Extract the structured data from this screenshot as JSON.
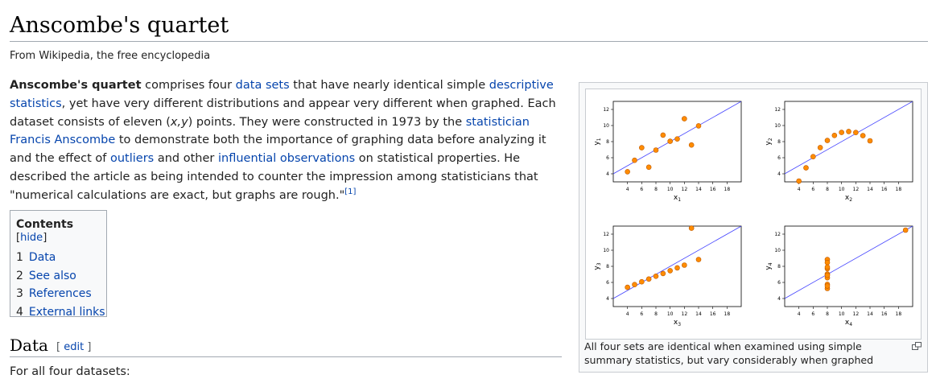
{
  "title": "Anscombe's quartet",
  "tagline": "From Wikipedia, the free encyclopedia",
  "intro": {
    "p1": "Anscombe's quartet",
    "p2": " comprises four ",
    "l1": "data sets",
    "p3": " that have nearly identical simple ",
    "l2": "descriptive statistics",
    "p4": ", yet have very different distributions and appear very different when graphed. Each dataset consists of eleven (",
    "xy": "x,y",
    "p5": ") points. They were constructed in 1973 by the ",
    "l3": "statistician Francis Anscombe",
    "p6": " to demonstrate both the importance of graphing data before analyzing it and the effect of ",
    "l4": "outliers",
    "p7": " and other ",
    "l5": "influential observations",
    "p8": " on statistical properties. He described the article as being intended to counter the impression among statisticians that \"numerical calculations are exact, but graphs are rough.\"",
    "ref": "[1]"
  },
  "toc": {
    "title": "Contents",
    "hide": "hide",
    "items": [
      {
        "num": "1",
        "label": "Data"
      },
      {
        "num": "2",
        "label": "See also"
      },
      {
        "num": "3",
        "label": "References"
      },
      {
        "num": "4",
        "label": "External links"
      }
    ]
  },
  "section": {
    "heading": "Data",
    "edit": "edit",
    "text": "For all four datasets:"
  },
  "figure": {
    "caption": "All four sets are identical when examined using simple summary statistics, but vary considerably when graphed",
    "point_color": "#ff8c00",
    "line_color": "#4444ff"
  },
  "chart_data": [
    {
      "type": "scatter",
      "xlabel": "x",
      "xsub": "1",
      "ylabel": "y",
      "ysub": "1",
      "xlim": [
        2,
        20
      ],
      "ylim": [
        3,
        13
      ],
      "xticks": [
        4,
        6,
        8,
        10,
        12,
        14,
        16,
        18
      ],
      "yticks": [
        4,
        6,
        8,
        10,
        12
      ],
      "x": [
        10,
        8,
        13,
        9,
        11,
        14,
        6,
        4,
        12,
        7,
        5
      ],
      "y": [
        8.04,
        6.95,
        7.58,
        8.81,
        8.33,
        9.96,
        7.24,
        4.26,
        10.84,
        4.82,
        5.68
      ],
      "fit": {
        "intercept": 3,
        "slope": 0.5
      }
    },
    {
      "type": "scatter",
      "xlabel": "x",
      "xsub": "2",
      "ylabel": "y",
      "ysub": "2",
      "xlim": [
        2,
        20
      ],
      "ylim": [
        3,
        13
      ],
      "xticks": [
        4,
        6,
        8,
        10,
        12,
        14,
        16,
        18
      ],
      "yticks": [
        4,
        6,
        8,
        10,
        12
      ],
      "x": [
        10,
        8,
        13,
        9,
        11,
        14,
        6,
        4,
        12,
        7,
        5
      ],
      "y": [
        9.14,
        8.14,
        8.74,
        8.77,
        9.26,
        8.1,
        6.13,
        3.1,
        9.13,
        7.26,
        4.74
      ],
      "fit": {
        "intercept": 3,
        "slope": 0.5
      }
    },
    {
      "type": "scatter",
      "xlabel": "x",
      "xsub": "3",
      "ylabel": "y",
      "ysub": "3",
      "xlim": [
        2,
        20
      ],
      "ylim": [
        3,
        13
      ],
      "xticks": [
        4,
        6,
        8,
        10,
        12,
        14,
        16,
        18
      ],
      "yticks": [
        4,
        6,
        8,
        10,
        12
      ],
      "x": [
        10,
        8,
        13,
        9,
        11,
        14,
        6,
        4,
        12,
        7,
        5
      ],
      "y": [
        7.46,
        6.77,
        12.74,
        7.11,
        7.81,
        8.84,
        6.08,
        5.39,
        8.15,
        6.42,
        5.73
      ],
      "fit": {
        "intercept": 3,
        "slope": 0.5
      }
    },
    {
      "type": "scatter",
      "xlabel": "x",
      "xsub": "4",
      "ylabel": "y",
      "ysub": "4",
      "xlim": [
        2,
        20
      ],
      "ylim": [
        3,
        13
      ],
      "xticks": [
        4,
        6,
        8,
        10,
        12,
        14,
        16,
        18
      ],
      "yticks": [
        4,
        6,
        8,
        10,
        12
      ],
      "x": [
        8,
        8,
        8,
        8,
        8,
        8,
        8,
        19,
        8,
        8,
        8
      ],
      "y": [
        6.58,
        5.76,
        7.71,
        8.84,
        8.47,
        7.04,
        5.25,
        12.5,
        5.56,
        7.91,
        6.89
      ],
      "fit": {
        "intercept": 3,
        "slope": 0.5
      }
    }
  ]
}
